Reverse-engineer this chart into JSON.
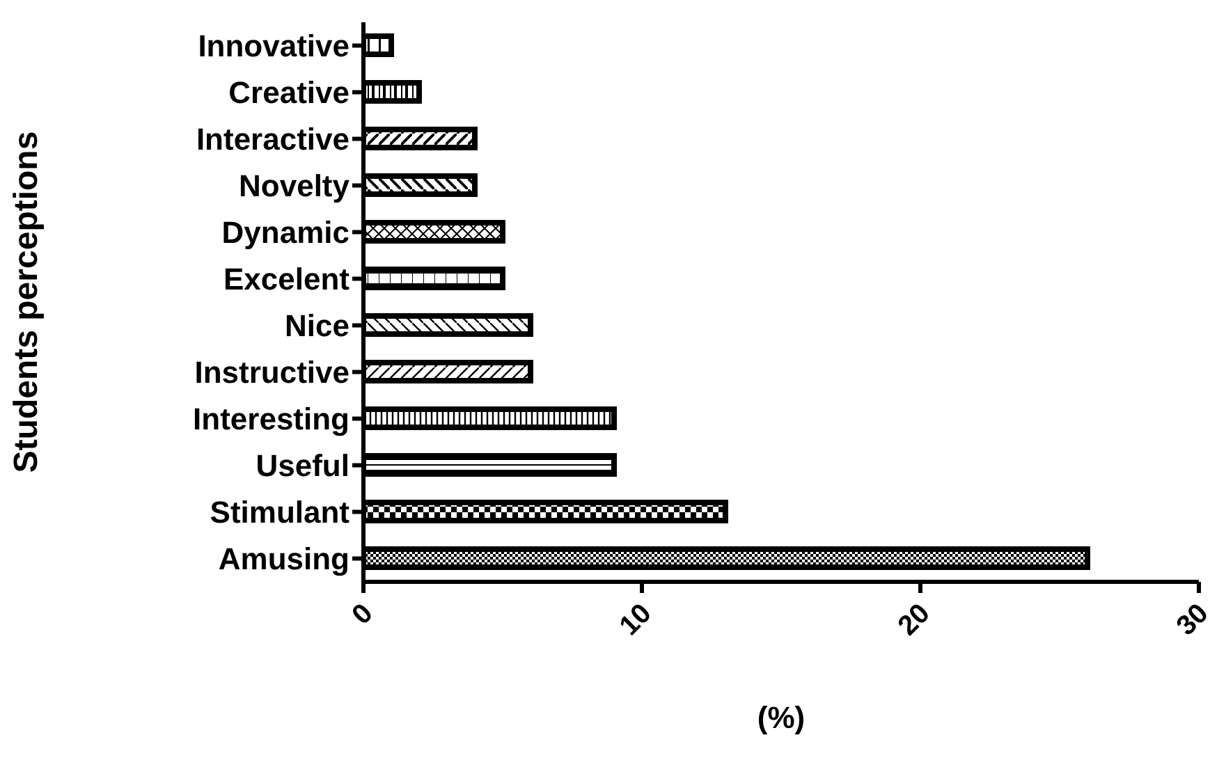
{
  "chart_data": {
    "type": "bar",
    "orientation": "horizontal",
    "xlabel": "(%)",
    "ylabel": "Students perceptions",
    "categories": [
      "Innovative",
      "Creative",
      "Interactive",
      "Novelty",
      "Dynamic",
      "Excelent",
      "Nice",
      "Instructive",
      "Interesting",
      "Useful",
      "Stimulant",
      "Amusing"
    ],
    "values": [
      1,
      2,
      4,
      4,
      5,
      5,
      6,
      6,
      9,
      9,
      13,
      26
    ],
    "color": "#000000",
    "xlim": [
      0,
      30
    ],
    "xticks": [
      0,
      10,
      20,
      30
    ],
    "grid": false,
    "legend": false
  }
}
